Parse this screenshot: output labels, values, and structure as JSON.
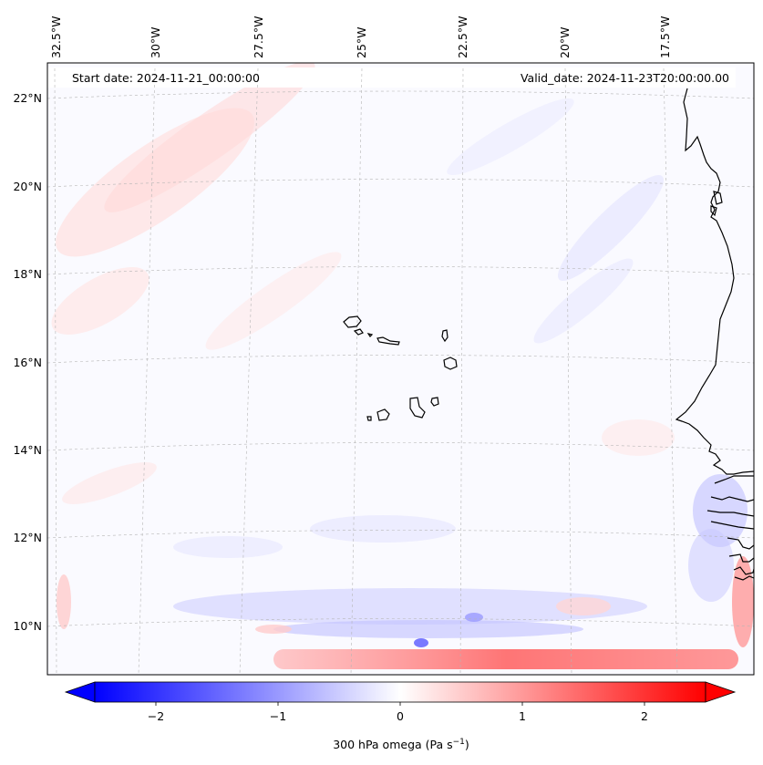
{
  "header": {
    "start_date": "Start date: 2024-11-21_00:00:00",
    "valid_date": "Valid_date: 2024-11-23T20:00:00.00"
  },
  "map": {
    "lon_labels": [
      "32.5°W",
      "30°W",
      "27.5°W",
      "25°W",
      "22.5°W",
      "20°W",
      "17.5°W"
    ],
    "lat_labels": [
      "22°N",
      "20°N",
      "18°N",
      "16°N",
      "14°N",
      "12°N",
      "10°N"
    ]
  },
  "colorbar": {
    "label": "300 hPa omega (Pa s",
    "label_sup": "−1",
    "label_close": ")",
    "ticks": [
      "−2",
      "−1",
      "0",
      "1",
      "2"
    ],
    "range": [
      -2.5,
      2.5
    ],
    "colors": {
      "negative": "#0000ff",
      "zero": "#ffffff",
      "positive": "#ff0000"
    }
  }
}
